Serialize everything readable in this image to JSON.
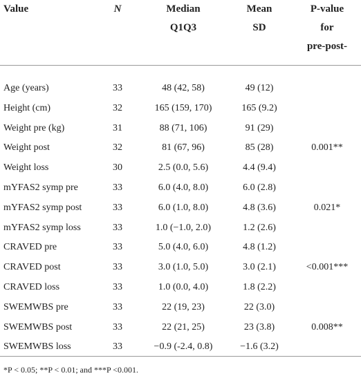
{
  "table": {
    "header": [
      [
        "Value"
      ],
      [
        "N"
      ],
      [
        "Median",
        "Q1Q3"
      ],
      [
        "Mean",
        "SD"
      ],
      [
        "P-value",
        "for",
        "pre-post-"
      ]
    ],
    "rows": [
      [
        "Age (years)",
        "33",
        "48 (42, 58)",
        "49 (12)",
        ""
      ],
      [
        "Height (cm)",
        "32",
        "165 (159, 170)",
        "165 (9.2)",
        ""
      ],
      [
        "Weight pre (kg)",
        "31",
        "88 (71, 106)",
        "91 (29)",
        ""
      ],
      [
        "Weight post",
        "32",
        "81 (67, 96)",
        "85 (28)",
        "0.001**"
      ],
      [
        "Weight loss",
        "30",
        "2.5 (0.0, 5.6)",
        "4.4 (9.4)",
        ""
      ],
      [
        "mYFAS2 symp pre",
        "33",
        "6.0 (4.0, 8.0)",
        "6.0 (2.8)",
        ""
      ],
      [
        "mYFAS2 symp post",
        "33",
        "6.0 (1.0, 8.0)",
        "4.8 (3.6)",
        "0.021*"
      ],
      [
        "mYFAS2 symp loss",
        "33",
        "1.0 (−1.0, 2.0)",
        "1.2 (2.6)",
        ""
      ],
      [
        "CRAVED pre",
        "33",
        "5.0 (4.0, 6.0)",
        "4.8 (1.2)",
        ""
      ],
      [
        "CRAVED post",
        "33",
        "3.0 (1.0, 5.0)",
        "3.0 (2.1)",
        "<0.001***"
      ],
      [
        "CRAVED loss",
        "33",
        "1.0 (0.0, 4.0)",
        "1.8 (2.2)",
        ""
      ],
      [
        "SWEMWBS pre",
        "33",
        "22 (19, 23)",
        "22 (3.0)",
        ""
      ],
      [
        "SWEMWBS post",
        "33",
        "22 (21, 25)",
        "23 (3.8)",
        "0.008**"
      ],
      [
        "SWEMWBS loss",
        "33",
        "−0.9 (-2.4, 0.8)",
        "−1.6 (3.2)",
        ""
      ]
    ],
    "footnote": "*P < 0.05; **P < 0.01; and ***P <0.001."
  }
}
